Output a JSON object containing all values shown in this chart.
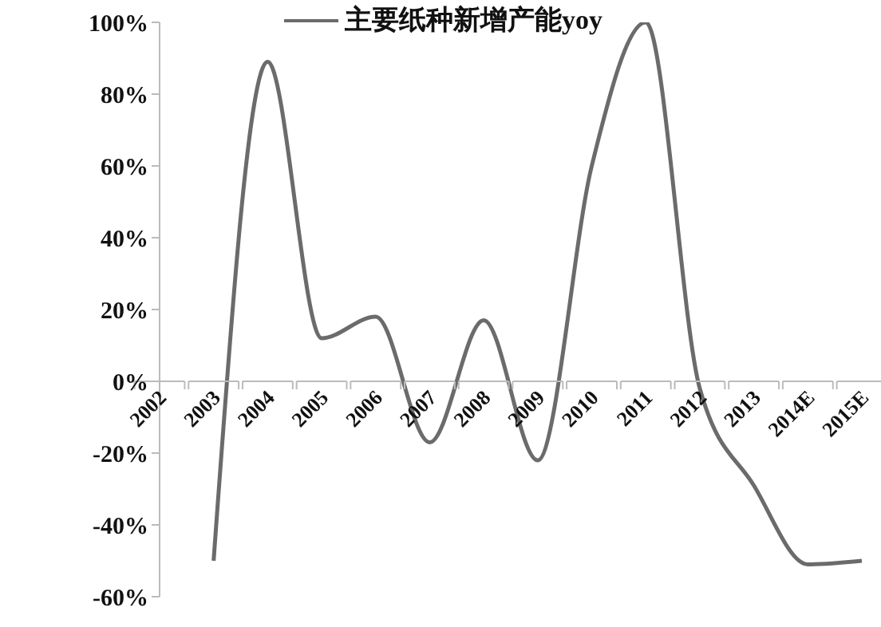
{
  "chart_data": {
    "type": "line",
    "categories": [
      "2002",
      "2003",
      "2004",
      "2005",
      "2006",
      "2007",
      "2008",
      "2009",
      "2010",
      "2011",
      "2012",
      "2013",
      "2014E",
      "2015E"
    ],
    "series": [
      {
        "name": "主要纸种新增产能yoy",
        "color": "#6b6b6b",
        "values": [
          null,
          -50,
          89,
          12,
          18,
          -17,
          17,
          -22,
          60,
          100,
          -2,
          -29,
          -51,
          -50
        ]
      }
    ],
    "ylim": [
      -60,
      100
    ],
    "yticks": [
      {
        "value": -60,
        "label": "-60%"
      },
      {
        "value": -40,
        "label": "-40%"
      },
      {
        "value": -20,
        "label": "-20%"
      },
      {
        "value": 0,
        "label": "0%"
      },
      {
        "value": 20,
        "label": "20%"
      },
      {
        "value": 40,
        "label": "40%"
      },
      {
        "value": 60,
        "label": "60%"
      },
      {
        "value": 80,
        "label": "80%"
      },
      {
        "value": 100,
        "label": "100%"
      }
    ],
    "legend": "top",
    "grid": false,
    "marker": "none"
  }
}
